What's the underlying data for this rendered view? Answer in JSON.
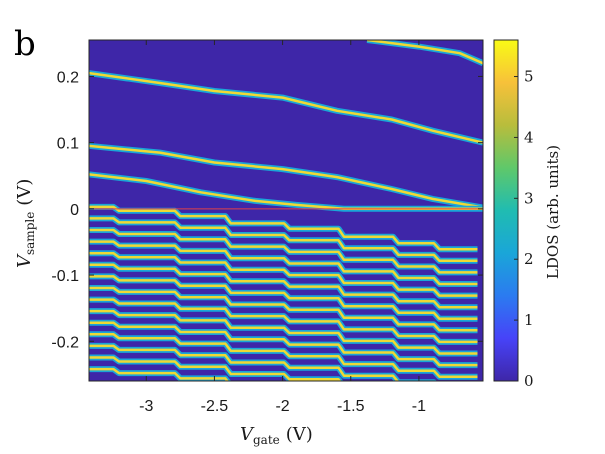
{
  "panel_label": "b",
  "chart_data": {
    "type": "heatmap",
    "x_axis": {
      "label_main": "V",
      "label_sub": "gate",
      "label_unit": "(V)",
      "range": [
        -3.42,
        -0.53
      ],
      "ticks": [
        -3,
        -2.5,
        -2,
        -1.5,
        -1
      ],
      "tick_labels": [
        "-3",
        "-2.5",
        "-2",
        "-1.5",
        "-1"
      ]
    },
    "y_axis": {
      "label_main": "V",
      "label_sub": "sample",
      "label_unit": "(V)",
      "range": [
        -0.26,
        0.255
      ],
      "ticks": [
        0.2,
        0.1,
        0,
        -0.1,
        -0.2
      ],
      "tick_labels": [
        "0.2",
        "0.1",
        "0",
        "-0.1",
        "-0.2"
      ]
    },
    "colorbar": {
      "label": "LDOS (arb. units)",
      "range": [
        0,
        5.6
      ],
      "ticks": [
        0,
        1,
        2,
        3,
        4,
        5
      ],
      "tick_labels": [
        "0",
        "1",
        "2",
        "3",
        "4",
        "5"
      ],
      "colormap": "parula",
      "low_color": "#3e26a8",
      "high_color": "#f9fb15"
    },
    "reference_line": {
      "y": 0,
      "color": "#e0404a"
    },
    "upper_levels": [
      {
        "points": [
          [
            -3.42,
            0.205
          ],
          [
            -2.9,
            0.19
          ],
          [
            -2.5,
            0.178
          ],
          [
            -2.0,
            0.168
          ],
          [
            -1.6,
            0.148
          ],
          [
            -1.2,
            0.135
          ],
          [
            -0.9,
            0.118
          ],
          [
            -0.53,
            0.1
          ]
        ]
      },
      {
        "points": [
          [
            -3.42,
            0.095
          ],
          [
            -2.9,
            0.085
          ],
          [
            -2.5,
            0.07
          ],
          [
            -2.0,
            0.06
          ],
          [
            -1.6,
            0.048
          ],
          [
            -1.2,
            0.03
          ],
          [
            -0.9,
            0.015
          ],
          [
            -0.53,
            0.002
          ]
        ]
      },
      {
        "points": [
          [
            -3.42,
            0.052
          ],
          [
            -3.0,
            0.042
          ],
          [
            -2.6,
            0.025
          ],
          [
            -2.2,
            0.012
          ],
          [
            -1.9,
            0.006
          ],
          [
            -1.55,
            0.0
          ],
          [
            -1.2,
            0.0
          ],
          [
            -0.53,
            0.0
          ]
        ]
      },
      {
        "points": [
          [
            -1.38,
            0.255
          ],
          [
            -1.0,
            0.245
          ],
          [
            -0.7,
            0.235
          ],
          [
            -0.53,
            0.22
          ]
        ]
      }
    ],
    "lower_band": {
      "top": 0.003,
      "bottom": -0.255,
      "spacing": 0.0175,
      "steps": [
        {
          "x": -3.2,
          "dy": 0.006
        },
        {
          "x": -2.75,
          "dy": 0.008
        },
        {
          "x": -2.38,
          "dy": 0.011
        },
        {
          "x": -1.95,
          "dy": 0.008
        },
        {
          "x": -1.55,
          "dy": 0.012
        },
        {
          "x": -1.15,
          "dy": 0.01
        },
        {
          "x": -0.85,
          "dy": 0.009
        }
      ]
    }
  }
}
